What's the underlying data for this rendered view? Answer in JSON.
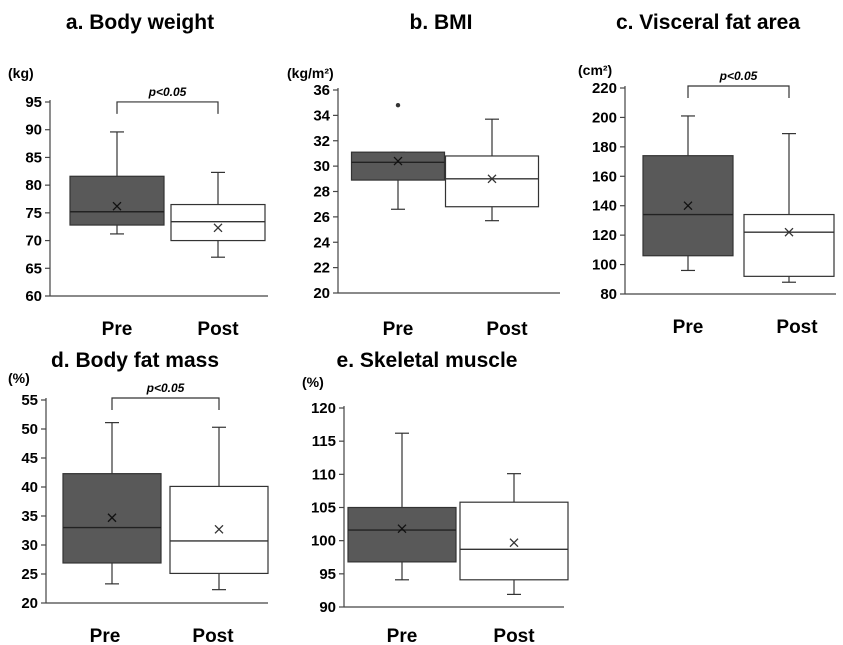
{
  "chart_data": [
    {
      "type": "box",
      "title": "a. Body weight",
      "unit_label": "(kg)",
      "ylim": [
        60,
        95
      ],
      "yticks": [
        60,
        65,
        70,
        75,
        80,
        85,
        90,
        95
      ],
      "categories": [
        "Pre",
        "Post"
      ],
      "fills": [
        "#595959",
        "#ffffff"
      ],
      "significance": "p<0.05",
      "boxes": [
        {
          "min": 71.2,
          "q1": 72.8,
          "median": 75.2,
          "q3": 81.6,
          "max": 89.6,
          "mean": 76.2,
          "outliers": []
        },
        {
          "min": 67.0,
          "q1": 70.0,
          "median": 73.4,
          "q3": 76.5,
          "max": 82.3,
          "mean": 72.3,
          "outliers": []
        }
      ]
    },
    {
      "type": "box",
      "title": "b. BMI",
      "unit_label": "(kg/m²)",
      "ylim": [
        20,
        36
      ],
      "yticks": [
        20,
        22,
        24,
        26,
        28,
        30,
        32,
        34,
        36
      ],
      "categories": [
        "Pre",
        "Post"
      ],
      "fills": [
        "#595959",
        "#ffffff"
      ],
      "significance": "",
      "boxes": [
        {
          "min": 26.6,
          "q1": 28.9,
          "median": 30.3,
          "q3": 31.1,
          "max": 31.1,
          "mean": 30.4,
          "outliers": [
            34.8
          ]
        },
        {
          "min": 25.7,
          "q1": 26.8,
          "median": 29.0,
          "q3": 30.8,
          "max": 33.7,
          "mean": 29.0,
          "outliers": []
        }
      ]
    },
    {
      "type": "box",
      "title": "c. Visceral fat area",
      "unit_label": "(cm²)",
      "ylim": [
        80,
        220
      ],
      "yticks": [
        80,
        100,
        120,
        140,
        160,
        180,
        200,
        220
      ],
      "categories": [
        "Pre",
        "Post"
      ],
      "fills": [
        "#595959",
        "#ffffff"
      ],
      "significance": "p<0.05",
      "boxes": [
        {
          "min": 96,
          "q1": 106,
          "median": 134,
          "q3": 174,
          "max": 201,
          "mean": 140,
          "outliers": []
        },
        {
          "min": 88,
          "q1": 92,
          "median": 122,
          "q3": 134,
          "max": 189,
          "mean": 122,
          "outliers": []
        }
      ]
    },
    {
      "type": "box",
      "title": "d. Body fat mass",
      "unit_label": "(%)",
      "ylim": [
        20,
        55
      ],
      "yticks": [
        20,
        25,
        30,
        35,
        40,
        45,
        50,
        55
      ],
      "categories": [
        "Pre",
        "Post"
      ],
      "fills": [
        "#595959",
        "#ffffff"
      ],
      "significance": "p<0.05",
      "boxes": [
        {
          "min": 23.3,
          "q1": 26.9,
          "median": 33.0,
          "q3": 42.3,
          "max": 51.1,
          "mean": 34.7,
          "outliers": []
        },
        {
          "min": 22.3,
          "q1": 25.1,
          "median": 30.7,
          "q3": 40.1,
          "max": 50.3,
          "mean": 32.7,
          "outliers": []
        }
      ]
    },
    {
      "type": "box",
      "title": "e. Skeletal muscle",
      "unit_label": "(%)",
      "ylim": [
        90,
        120
      ],
      "yticks": [
        90,
        95,
        100,
        105,
        110,
        115,
        120
      ],
      "categories": [
        "Pre",
        "Post"
      ],
      "fills": [
        "#595959",
        "#ffffff"
      ],
      "significance": "",
      "boxes": [
        {
          "min": 94.1,
          "q1": 96.8,
          "median": 101.6,
          "q3": 105.0,
          "max": 116.2,
          "mean": 101.8,
          "outliers": []
        },
        {
          "min": 91.9,
          "q1": 94.1,
          "median": 98.7,
          "q3": 105.8,
          "max": 110.1,
          "mean": 99.7,
          "outliers": []
        }
      ]
    }
  ]
}
